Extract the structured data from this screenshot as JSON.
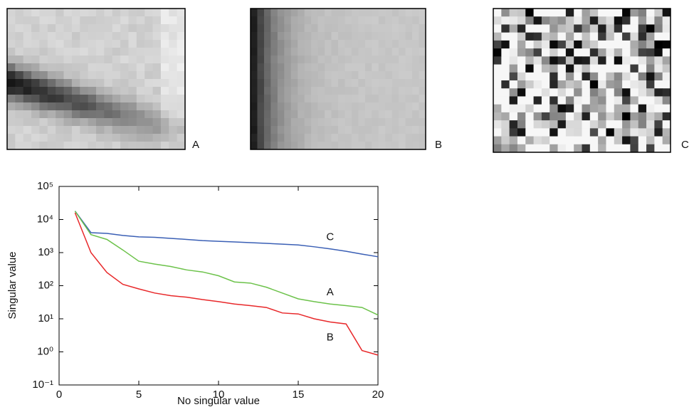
{
  "panels": [
    {
      "label": "A"
    },
    {
      "label": "B"
    },
    {
      "label": "C"
    }
  ],
  "chart_data": {
    "type": "line",
    "log_y": true,
    "grid": false,
    "xlabel": "No singular value",
    "ylabel": "Singular value",
    "xlim": [
      0,
      20
    ],
    "xticks": [
      0,
      5,
      10,
      15,
      20
    ],
    "ylim": [
      0.1,
      100000
    ],
    "yticks": [
      {
        "value": 0.1,
        "label": "10⁻¹"
      },
      {
        "value": 1,
        "label": "10⁰"
      },
      {
        "value": 10,
        "label": "10¹"
      },
      {
        "value": 100,
        "label": "10²"
      },
      {
        "value": 1000,
        "label": "10³"
      },
      {
        "value": 10000,
        "label": "10⁴"
      },
      {
        "value": 100000,
        "label": "10⁵"
      }
    ],
    "x": [
      1,
      2,
      3,
      4,
      5,
      6,
      7,
      8,
      9,
      10,
      11,
      12,
      13,
      14,
      15,
      16,
      17,
      18,
      19,
      20
    ],
    "series": [
      {
        "name": "C",
        "color": "#3a5fb5",
        "values": [
          18000,
          4000,
          3800,
          3300,
          3000,
          2900,
          2700,
          2500,
          2300,
          2200,
          2100,
          2000,
          1900,
          1800,
          1700,
          1500,
          1300,
          1100,
          900,
          750
        ]
      },
      {
        "name": "A",
        "color": "#6cc24a",
        "values": [
          18000,
          3500,
          2500,
          1200,
          550,
          450,
          380,
          300,
          260,
          200,
          130,
          120,
          90,
          60,
          40,
          33,
          28,
          25,
          22,
          13
        ]
      },
      {
        "name": "B",
        "color": "#e8282a",
        "values": [
          16000,
          1000,
          250,
          110,
          80,
          60,
          50,
          45,
          38,
          33,
          28,
          25,
          22,
          15,
          14,
          10,
          8,
          7,
          1.1,
          0.8
        ]
      }
    ]
  }
}
